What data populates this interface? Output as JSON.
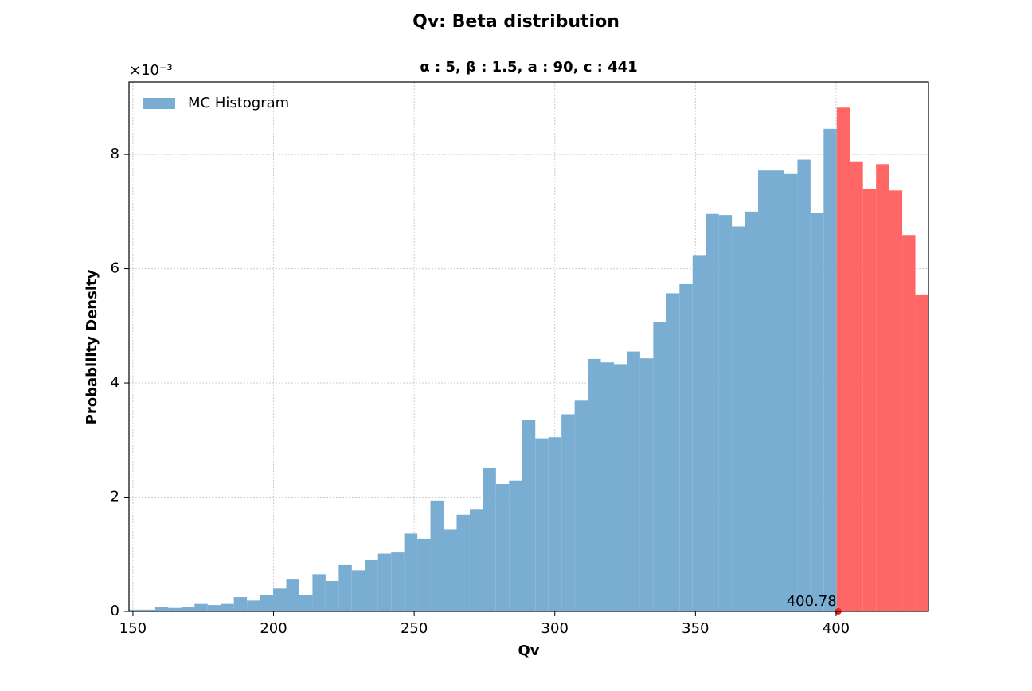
{
  "chart_data": {
    "type": "histogram",
    "title": "Qv: Beta distribution",
    "subtitle": "α : 5, β : 1.5, a : 90, c : 441",
    "xlabel": "Qv",
    "ylabel": "Probability Density",
    "y_offset_label": "×10⁻³",
    "bins": [
      148.6,
      153.26,
      157.92,
      162.58,
      167.24,
      171.9,
      176.56,
      181.22,
      185.88,
      190.54,
      195.2,
      199.86,
      204.52,
      209.18,
      213.84,
      218.5,
      223.16,
      227.82,
      232.48,
      237.14,
      241.8,
      246.46,
      251.12,
      255.78,
      260.44,
      265.1,
      269.76,
      274.42,
      279.08,
      283.74,
      288.4,
      293.06,
      297.72,
      302.38,
      307.04,
      311.7,
      316.36,
      321.02,
      325.68,
      330.34,
      335.0,
      339.66,
      344.32,
      348.98,
      353.64,
      358.3,
      362.96,
      367.62,
      372.28,
      376.94,
      381.6,
      386.26,
      390.92,
      395.58,
      400.24,
      404.9,
      409.56,
      414.22,
      418.88,
      423.54,
      428.2,
      432.86
    ],
    "series": [
      {
        "name": "MC Histogram",
        "color": "#7aadd2",
        "values": [
          0.03,
          0.03,
          0.08,
          0.06,
          0.08,
          0.13,
          0.11,
          0.13,
          0.25,
          0.19,
          0.28,
          0.4,
          0.57,
          0.28,
          0.65,
          0.53,
          0.81,
          0.72,
          0.9,
          1.01,
          1.03,
          1.36,
          1.27,
          1.94,
          1.43,
          1.69,
          1.78,
          2.51,
          2.23,
          2.29,
          3.36,
          3.03,
          3.05,
          3.45,
          3.69,
          4.42,
          4.36,
          4.33,
          4.55,
          4.43,
          5.06,
          5.57,
          5.73,
          6.24,
          6.96,
          6.94,
          6.74,
          7.0,
          7.72,
          7.72,
          7.67,
          7.91,
          6.98,
          8.45,
          8.82,
          7.88,
          7.39,
          7.83,
          7.37,
          6.59,
          5.55
        ]
      }
    ],
    "threshold": {
      "value": 400.78,
      "label": "400.78",
      "color": "#ff6666",
      "marker_color": "#e8201a"
    },
    "xlim": [
      148.6,
      432.86
    ],
    "ylim": [
      0,
      9.27
    ],
    "xticks": [
      150,
      200,
      250,
      300,
      350,
      400
    ],
    "yticks": [
      0,
      2,
      4,
      6,
      8
    ],
    "grid": true,
    "legend": "upper left"
  }
}
